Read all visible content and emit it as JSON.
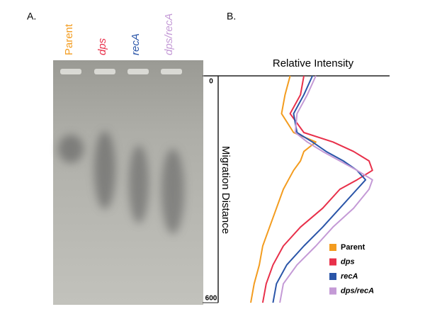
{
  "panel_a": {
    "label": "A.",
    "lanes": [
      {
        "label": "Parent",
        "color": "#f39c1f"
      },
      {
        "label": "dps",
        "color": "#e8304a"
      },
      {
        "label": "recA",
        "color": "#2a55a8"
      },
      {
        "label": "dps/recA",
        "color": "#c49ad6"
      }
    ]
  },
  "chart_data": {
    "type": "line",
    "panel_label": "B.",
    "title": "Relative Intensity",
    "y_label": "Migration Distance",
    "y": [
      0,
      50,
      100,
      150,
      175,
      200,
      225,
      250,
      275,
      300,
      350,
      400,
      450,
      500,
      550,
      600
    ],
    "ylim": [
      0,
      600
    ],
    "yticks": [
      0,
      600
    ],
    "xlim": [
      0,
      100
    ],
    "series": [
      {
        "name": "Parent",
        "color": "#f39c1f",
        "values": [
          42,
          39,
          37,
          44,
          57,
          50,
          48,
          44,
          41,
          38,
          34,
          30,
          26,
          24,
          21,
          19
        ]
      },
      {
        "name": "dps",
        "color": "#e8304a",
        "values": [
          50,
          48,
          42,
          50,
          67,
          79,
          88,
          90,
          81,
          71,
          61,
          48,
          38,
          32,
          28,
          26
        ]
      },
      {
        "name": "recA",
        "color": "#2a55a8",
        "values": [
          55,
          50,
          44,
          46,
          55,
          63,
          73,
          81,
          86,
          81,
          71,
          61,
          50,
          40,
          34,
          32
        ]
      },
      {
        "name": "dps/recA",
        "color": "#c49ad6",
        "values": [
          57,
          52,
          46,
          45,
          52,
          61,
          71,
          81,
          90,
          88,
          79,
          67,
          57,
          46,
          38,
          36
        ]
      }
    ]
  }
}
